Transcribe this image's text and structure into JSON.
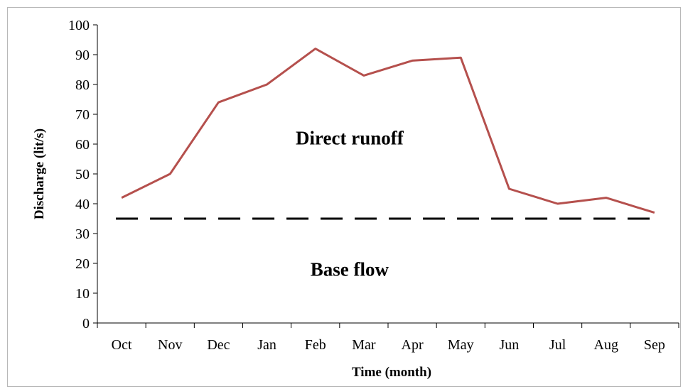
{
  "chart_data": {
    "type": "line",
    "categories": [
      "Oct",
      "Nov",
      "Dec",
      "Jan",
      "Feb",
      "Mar",
      "Apr",
      "May",
      "Jun",
      "Jul",
      "Aug",
      "Sep"
    ],
    "series": [
      {
        "values": [
          42,
          50,
          74,
          80,
          92,
          83,
          88,
          89,
          45,
          40,
          42,
          37
        ],
        "color": "#b5504d"
      }
    ],
    "baseline": {
      "value": 35,
      "style": "dashed",
      "color": "#000000"
    },
    "annotations": [
      {
        "text": "Direct runoff",
        "x_category": "Mar",
        "y": 62
      },
      {
        "text": "Base flow",
        "x_category": "Mar",
        "y": 18
      }
    ],
    "xlabel": "Time (month)",
    "ylabel": "Discharge (lit/s)",
    "ylim": [
      0,
      100
    ],
    "yticks": [
      0,
      10,
      20,
      30,
      40,
      50,
      60,
      70,
      80,
      90,
      100
    ],
    "grid": false,
    "legend": "none"
  }
}
